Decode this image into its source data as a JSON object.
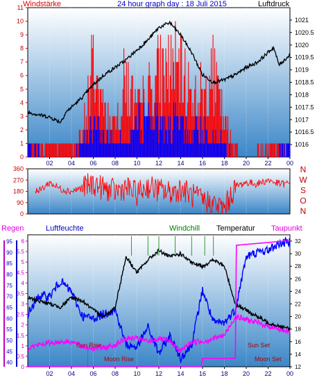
{
  "header": {
    "left_label": "Windstärke",
    "title": "24 hour graph day : 18 Juli 2015",
    "right_label": "Luftdruck"
  },
  "time_ticks": [
    "02",
    "04",
    "06",
    "08",
    "10",
    "12",
    "14",
    "16",
    "18",
    "20",
    "22",
    "00"
  ],
  "colors": {
    "background": "#ffffff",
    "panel_top": "#ffffff",
    "panel_bottom": "#3a86c8",
    "wind": "#ff0000",
    "gust": "#0000ff",
    "pressure": "#000000",
    "humidity": "#0000ff",
    "dewpoint": "#ff00ff",
    "windchill": "#008000"
  },
  "chart_data": [
    {
      "type": "line",
      "ylabel": "Windstärke",
      "y2label": "Luftdruck",
      "ylim": [
        0,
        11
      ],
      "y2lim": [
        1015.5,
        1021.5
      ],
      "yticks": [
        "0",
        "1",
        "2",
        "3",
        "4",
        "5",
        "6",
        "7",
        "8",
        "9",
        "10",
        "11"
      ],
      "y2ticks": [
        "1016",
        "1016.5",
        "1017",
        "1017.5",
        "1018",
        "1018.5",
        "1019",
        "1019.5",
        "1020",
        "1020.5",
        "1021"
      ],
      "series": [
        {
          "hours": [
            0,
            2,
            3,
            3.5,
            4,
            5,
            6,
            7,
            8,
            9,
            10,
            11,
            12,
            13,
            14,
            15,
            16,
            17,
            18,
            19,
            20,
            21,
            22,
            22.5,
            23,
            24
          ],
          "values": [
            1017.3,
            1017.1,
            1016.9,
            1017.3,
            1017.5,
            1017.9,
            1018.4,
            1018.8,
            1019.1,
            1019.4,
            1019.8,
            1020.2,
            1020.7,
            1020.9,
            1020.4,
            1019.7,
            1018.8,
            1018.5,
            1018.6,
            1018.8,
            1019.1,
            1019.3,
            1019.7,
            1019.9,
            1019.2,
            1019.6
          ]
        },
        {
          "hours": [
            0,
            2,
            4,
            5,
            6,
            7,
            8,
            9,
            10,
            11,
            12,
            13,
            14,
            15,
            16,
            17,
            18,
            19,
            20,
            22,
            24
          ],
          "values": [
            1,
            1,
            1,
            2,
            9,
            4,
            3,
            8,
            4,
            6,
            8,
            9,
            8,
            6,
            6,
            8,
            3,
            1,
            0,
            1,
            1
          ]
        },
        {
          "hours": [
            0,
            2,
            4,
            5,
            6,
            7,
            8,
            9,
            10,
            11,
            12,
            13,
            14,
            15,
            16,
            17,
            18,
            19,
            20,
            22,
            24
          ],
          "values": [
            1,
            0,
            0,
            1,
            3,
            2,
            2,
            1,
            3,
            4,
            3,
            3,
            3,
            2,
            3,
            2,
            1,
            0,
            0,
            0,
            1
          ]
        }
      ]
    },
    {
      "type": "line",
      "ylim": [
        0,
        360
      ],
      "yticks": [
        "0",
        "90",
        "180",
        "270",
        "360"
      ],
      "compass": [
        "N",
        "W",
        "S",
        "O",
        "N"
      ],
      "series": [
        {
          "hours": [
            0,
            1,
            2,
            3,
            4,
            5,
            6,
            7,
            8,
            9,
            10,
            11,
            12,
            13,
            14,
            15,
            16,
            17,
            18,
            19,
            20,
            21,
            22,
            23,
            24
          ],
          "values": [
            240,
            180,
            250,
            200,
            180,
            210,
            240,
            200,
            180,
            210,
            160,
            220,
            190,
            170,
            200,
            150,
            110,
            80,
            40,
            220,
            250,
            240,
            270,
            240,
            240
          ]
        }
      ]
    },
    {
      "type": "line",
      "labels": {
        "regen": "Regen",
        "luftfeuchte": "Luftfeuchte",
        "windchill": "Windchill",
        "temperatur": "Temperatur",
        "taupunkt": "Taupunkt"
      },
      "y1ticks": [
        "0",
        "0.5",
        "1",
        "1.5",
        "2",
        "2.5",
        "3",
        "3.5",
        "4",
        "4.5",
        "5",
        "5.5",
        "6"
      ],
      "y2ticks": [
        "40",
        "45",
        "50",
        "55",
        "60",
        "65",
        "70",
        "75",
        "80",
        "85",
        "90",
        "95"
      ],
      "y3ticks": [
        "12",
        "14",
        "16",
        "18",
        "20",
        "22",
        "24",
        "26",
        "28",
        "30",
        "32"
      ],
      "ylim_temp": [
        12,
        33
      ],
      "ylim_hum": [
        38,
        98
      ],
      "ylim_rain": [
        0,
        6.3
      ],
      "series": [
        {
          "hours": [
            0,
            1,
            2,
            3,
            4,
            5,
            6,
            7,
            8,
            9,
            10,
            11,
            12,
            13,
            14,
            15,
            16,
            17,
            18,
            19,
            20,
            21,
            22,
            23,
            24
          ],
          "values": [
            23,
            22.5,
            22,
            21.5,
            23,
            22.5,
            21,
            20,
            21.5,
            29.5,
            27,
            29,
            30.5,
            29.5,
            30,
            28.5,
            28,
            29,
            28,
            22,
            21,
            20,
            19,
            18.5,
            18
          ]
        },
        {
          "hours": [
            0,
            1,
            2,
            3,
            4,
            5,
            6,
            7,
            8,
            9,
            10,
            11,
            12,
            13,
            14,
            15,
            16,
            17,
            18,
            19,
            20,
            21,
            22,
            23,
            24
          ],
          "values": [
            62,
            70,
            70,
            77,
            72,
            61,
            60,
            62,
            64,
            48,
            47,
            56,
            44,
            52,
            42,
            48,
            73,
            58,
            58,
            64,
            88,
            90,
            91,
            94,
            95
          ]
        },
        {
          "hours": [
            0,
            1,
            2,
            3,
            4,
            5,
            6,
            7,
            8,
            9,
            10,
            11,
            12,
            13,
            14,
            15,
            16,
            17,
            18,
            19,
            20,
            21,
            22,
            23,
            24
          ],
          "values": [
            15,
            15.5,
            15.8,
            16,
            16,
            15.2,
            15,
            15,
            15.5,
            16.5,
            16.5,
            16,
            16.5,
            16,
            14.5,
            16,
            16,
            16.5,
            17,
            20,
            19.5,
            19,
            18.5,
            18,
            17.5
          ]
        },
        {
          "hours": [
            0,
            15.9,
            16,
            19,
            19.1,
            23.5,
            24
          ],
          "values": [
            0,
            0,
            0.4,
            0.4,
            5.8,
            6,
            6
          ]
        }
      ]
    }
  ],
  "annotations": {
    "sun_rise": "Sun Rise",
    "moon_rise": "Moon Rise",
    "sun_set": "Sun Set",
    "moon_set": "Moon Set"
  }
}
